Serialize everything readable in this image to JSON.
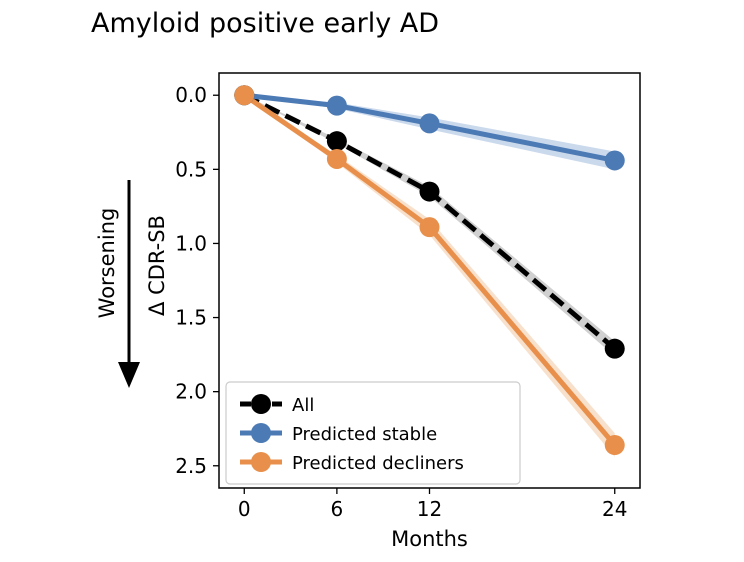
{
  "chart_data": {
    "type": "line",
    "title": "Amyloid positive early AD",
    "xlabel": "Months",
    "ylabel": "Δ CDR-SB",
    "side_label": "Worsening",
    "x": [
      0,
      6,
      12,
      24
    ],
    "x_ticks": [
      "0",
      "6",
      "12",
      "24"
    ],
    "y_ticks": [
      "0.0",
      "0.5",
      "1.0",
      "1.5",
      "2.0",
      "2.5"
    ],
    "ylim": [
      -0.15,
      2.65
    ],
    "y_inverted": true,
    "grid": false,
    "legend_position": "lower-left",
    "series": [
      {
        "name": "All",
        "values": [
          0.0,
          0.31,
          0.65,
          1.71
        ],
        "ci": 0.05,
        "color": "#000000",
        "band_color": "#aaaaaa",
        "dashed": true
      },
      {
        "name": "Predicted stable",
        "values": [
          0.0,
          0.07,
          0.19,
          0.44
        ],
        "ci": 0.06,
        "color": "#4c7ab5",
        "band_color": "#9fb9dd",
        "dashed": false
      },
      {
        "name": "Predicted decliners",
        "values": [
          0.0,
          0.43,
          0.89,
          2.36
        ],
        "ci": 0.08,
        "color": "#e8904b",
        "band_color": "#f3c9a2",
        "dashed": false
      }
    ]
  }
}
